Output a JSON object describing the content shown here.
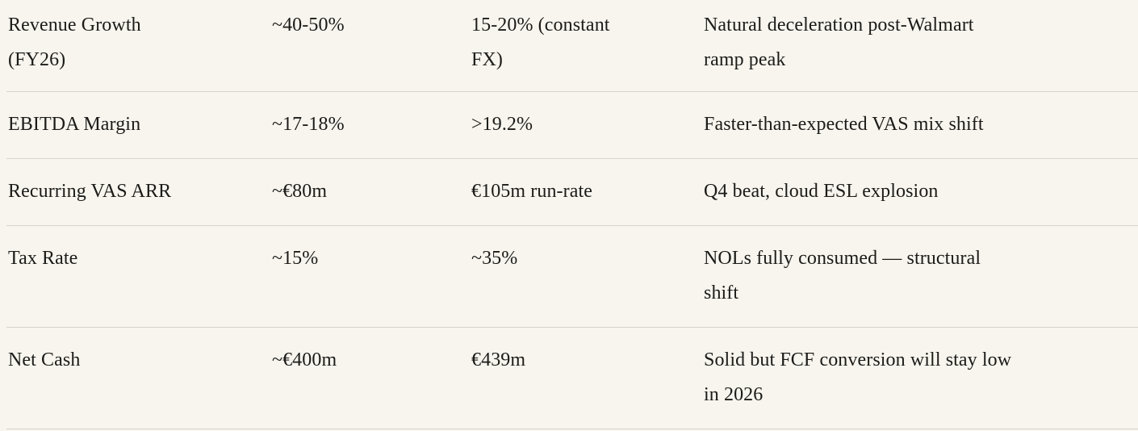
{
  "theme": {
    "background_color": "#F7F5EE",
    "text_color": "#1C1B18",
    "divider_color": "#D6D3C9"
  },
  "table": {
    "rows": [
      {
        "cells": [
          "Revenue Growth\n(FY26)",
          "~40-50%",
          "15-20% (constant\nFX)",
          "Natural deceleration post-Walmart\nramp peak"
        ]
      },
      {
        "cells": [
          "EBITDA Margin",
          "~17-18%",
          ">19.2%",
          "Faster-than-expected VAS mix shift"
        ]
      },
      {
        "cells": [
          "Recurring VAS ARR",
          "~€80m",
          "€105m run-rate",
          "Q4 beat, cloud ESL explosion"
        ]
      },
      {
        "cells": [
          "Tax Rate",
          "~15%",
          "~35%",
          "NOLs fully consumed — structural\nshift"
        ]
      },
      {
        "cells": [
          "Net Cash",
          "~€400m",
          "€439m",
          "Solid but FCF conversion will stay low\nin 2026"
        ]
      }
    ]
  }
}
